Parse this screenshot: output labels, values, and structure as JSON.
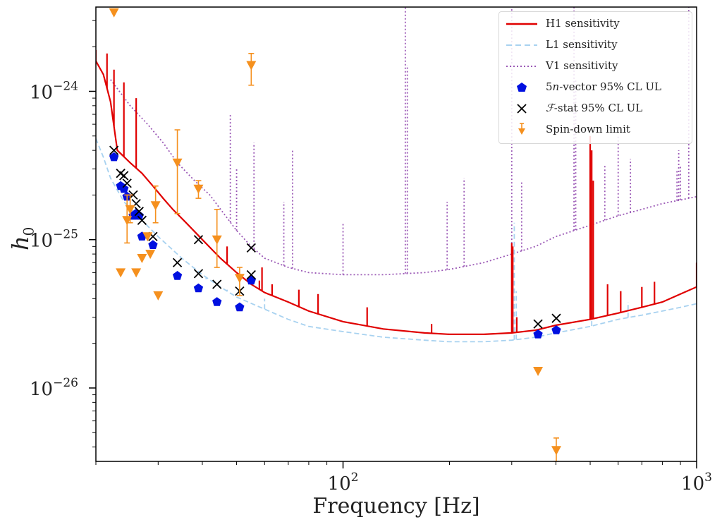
{
  "chart_data": {
    "type": "scatter",
    "title": "",
    "xlabel": "Frequency [Hz]",
    "ylabel": "h_0",
    "xscale": "log",
    "yscale": "log",
    "xlim": [
      20,
      1000
    ],
    "ylim": [
      3.2e-27,
      3.7e-24
    ],
    "x_ticks": [
      {
        "value": 100,
        "label_base": "10",
        "label_exp": "2"
      },
      {
        "value": 1000,
        "label_base": "10",
        "label_exp": "3"
      }
    ],
    "y_ticks": [
      {
        "value": 1e-26,
        "label_base": "10",
        "label_exp": "−26"
      },
      {
        "value": 1e-25,
        "label_base": "10",
        "label_exp": "−25"
      },
      {
        "value": 1e-24,
        "label_base": "10",
        "label_exp": "−24"
      }
    ],
    "grid": false,
    "legend_position": "top-right",
    "legend": [
      {
        "key": "h1",
        "label": "H1 sensitivity",
        "symbol": "solid-line",
        "color": "#e00000"
      },
      {
        "key": "l1",
        "label": "L1 sensitivity",
        "symbol": "dashed-line",
        "color": "#a8d2f0"
      },
      {
        "key": "v1",
        "label": "V1 sensitivity",
        "symbol": "dotted-line",
        "color": "#9b59b6"
      },
      {
        "key": "fivevec",
        "label": "5n-vector 95% CL UL",
        "label_html": "5<i>n</i>-vector 95% CL UL",
        "symbol": "pentagon",
        "color": "#0010e0"
      },
      {
        "key": "fstat",
        "label": "F-stat 95% CL UL",
        "label_html": "<i>ℱ</i>-stat 95% CL UL",
        "symbol": "x",
        "color": "#000000"
      },
      {
        "key": "spindown",
        "label": "Spin-down limit",
        "symbol": "triangle-down-errorbar",
        "color": "#f5901e"
      }
    ],
    "series": [
      {
        "name": "H1 sensitivity",
        "style": "solid",
        "color": "#e00000",
        "points": [
          [
            20,
            1.6e-24
          ],
          [
            21,
            1.3e-24
          ],
          [
            22,
            8.5e-25
          ],
          [
            23,
            4e-25
          ],
          [
            25,
            3.3e-25
          ],
          [
            27,
            2.8e-25
          ],
          [
            29,
            2.3e-25
          ],
          [
            31,
            1.9e-25
          ],
          [
            33,
            1.6e-25
          ],
          [
            36,
            1.3e-25
          ],
          [
            40,
            1e-25
          ],
          [
            45,
            7.5e-26
          ],
          [
            50,
            6e-26
          ],
          [
            55,
            5e-26
          ],
          [
            60,
            4.4e-26
          ],
          [
            70,
            3.8e-26
          ],
          [
            80,
            3.3e-26
          ],
          [
            100,
            2.8e-26
          ],
          [
            130,
            2.5e-26
          ],
          [
            170,
            2.35e-26
          ],
          [
            200,
            2.3e-26
          ],
          [
            250,
            2.3e-26
          ],
          [
            300,
            2.35e-26
          ],
          [
            350,
            2.45e-26
          ],
          [
            400,
            2.65e-26
          ],
          [
            500,
            2.9e-26
          ],
          [
            600,
            3.2e-26
          ],
          [
            700,
            3.5e-26
          ],
          [
            800,
            3.8e-26
          ],
          [
            900,
            4.3e-26
          ],
          [
            1000,
            4.8e-26
          ]
        ],
        "lines": [
          [
            20,
            1.9e-24
          ],
          [
            21.5,
            1.8e-24
          ],
          [
            22.5,
            1.4e-24
          ],
          [
            24,
            1.15e-24
          ],
          [
            26,
            9e-25
          ],
          [
            47,
            9e-26
          ],
          [
            52,
            5.5e-26
          ],
          [
            58,
            5.3e-26
          ],
          [
            59,
            6.5e-26
          ],
          [
            63,
            5e-26
          ],
          [
            75,
            4.6e-26
          ],
          [
            85,
            4.3e-26
          ],
          [
            117,
            3.5e-26
          ],
          [
            178,
            2.7e-26
          ],
          [
            300,
            9.5e-26
          ],
          [
            302,
            9e-26
          ],
          [
            310,
            3e-26
          ],
          [
            500,
            5e-25
          ],
          [
            505,
            4e-25
          ],
          [
            510,
            2.5e-25
          ],
          [
            560,
            5e-26
          ],
          [
            610,
            4.5e-26
          ],
          [
            700,
            4.8e-26
          ],
          [
            760,
            5.2e-26
          ],
          [
            1000,
            7e-26
          ]
        ]
      },
      {
        "name": "L1 sensitivity",
        "style": "dashed",
        "color": "#a8d2f0",
        "points": [
          [
            20,
            4.8e-25
          ],
          [
            21,
            3.6e-25
          ],
          [
            22,
            2.6e-25
          ],
          [
            24,
            1.8e-25
          ],
          [
            27,
            1.35e-25
          ],
          [
            30,
            1.05e-25
          ],
          [
            35,
            7.5e-26
          ],
          [
            40,
            5.8e-26
          ],
          [
            45,
            4.8e-26
          ],
          [
            50,
            4.1e-26
          ],
          [
            60,
            3.4e-26
          ],
          [
            70,
            2.9e-26
          ],
          [
            80,
            2.6e-26
          ],
          [
            100,
            2.4e-26
          ],
          [
            130,
            2.2e-26
          ],
          [
            170,
            2.1e-26
          ],
          [
            200,
            2.05e-26
          ],
          [
            250,
            2.05e-26
          ],
          [
            300,
            2.1e-26
          ],
          [
            350,
            2.2e-26
          ],
          [
            400,
            2.35e-26
          ],
          [
            500,
            2.6e-26
          ],
          [
            600,
            2.9e-26
          ],
          [
            700,
            3.1e-26
          ],
          [
            800,
            3.3e-26
          ],
          [
            900,
            3.5e-26
          ],
          [
            1000,
            3.7e-26
          ]
        ],
        "lines": [
          [
            41,
            5.4e-26
          ],
          [
            47,
            4.6e-26
          ],
          [
            60,
            4e-26
          ],
          [
            305,
            1.3e-25
          ],
          [
            309,
            4.5e-26
          ],
          [
            505,
            3.5e-26
          ],
          [
            640,
            3.8e-26
          ]
        ]
      },
      {
        "name": "V1 sensitivity",
        "style": "dotted",
        "color": "#9b59b6",
        "points": [
          [
            22,
            1.2e-24
          ],
          [
            25,
            8e-25
          ],
          [
            28,
            6e-25
          ],
          [
            31,
            4.5e-25
          ],
          [
            34,
            3.3e-25
          ],
          [
            38,
            2.5e-25
          ],
          [
            42,
            2e-25
          ],
          [
            46,
            1.5e-25
          ],
          [
            50,
            1.15e-25
          ],
          [
            55,
            9e-26
          ],
          [
            60,
            7.5e-26
          ],
          [
            70,
            6.5e-26
          ],
          [
            80,
            6e-26
          ],
          [
            100,
            5.8e-26
          ],
          [
            130,
            5.8e-26
          ],
          [
            170,
            6e-26
          ],
          [
            200,
            6.3e-26
          ],
          [
            250,
            7e-26
          ],
          [
            300,
            8e-26
          ],
          [
            350,
            9e-26
          ],
          [
            400,
            1.05e-25
          ],
          [
            500,
            1.25e-25
          ],
          [
            600,
            1.45e-25
          ],
          [
            700,
            1.6e-25
          ],
          [
            800,
            1.75e-25
          ],
          [
            900,
            1.85e-25
          ],
          [
            1000,
            1.95e-25
          ]
        ],
        "lines": [
          [
            48,
            7e-25
          ],
          [
            50,
            3e-25
          ],
          [
            56,
            4.5e-25
          ],
          [
            68,
            1.8e-25
          ],
          [
            72,
            4e-25
          ],
          [
            100,
            1.3e-25
          ],
          [
            150,
            3.7e-24
          ],
          [
            152,
            1.5e-24
          ],
          [
            197,
            1.8e-25
          ],
          [
            220,
            2.6e-25
          ],
          [
            300,
            3.7e-24
          ],
          [
            320,
            2.5e-25
          ],
          [
            450,
            3.7e-24
          ],
          [
            455,
            1.2e-24
          ],
          [
            500,
            3e-25
          ],
          [
            550,
            3.2e-25
          ],
          [
            600,
            5e-25
          ],
          [
            650,
            3.5e-25
          ],
          [
            880,
            3e-25
          ],
          [
            890,
            4e-25
          ],
          [
            900,
            3.2e-25
          ],
          [
            950,
            3.7e-24
          ]
        ]
      },
      {
        "name": "5n-vector 95% CL UL",
        "style": "marker",
        "marker": "pentagon",
        "color": "#0010e0",
        "points": [
          [
            22.5,
            3.6e-25
          ],
          [
            23.5,
            2.3e-25
          ],
          [
            24,
            2.2e-25
          ],
          [
            24.5,
            1.95e-25
          ],
          [
            25.5,
            1.45e-25
          ],
          [
            26,
            1.5e-25
          ],
          [
            26.5,
            1.45e-25
          ],
          [
            27,
            1.05e-25
          ],
          [
            29,
            9.2e-26
          ],
          [
            34,
            5.7e-26
          ],
          [
            39,
            4.7e-26
          ],
          [
            44,
            3.8e-26
          ],
          [
            51,
            3.5e-26
          ],
          [
            55,
            5.3e-26
          ],
          [
            356,
            2.3e-26
          ],
          [
            401,
            2.45e-26
          ]
        ]
      },
      {
        "name": "F-stat 95% CL UL",
        "style": "marker",
        "marker": "x",
        "color": "#000000",
        "points": [
          [
            22.5,
            4e-25
          ],
          [
            23.5,
            2.8e-25
          ],
          [
            24,
            2.7e-25
          ],
          [
            24.5,
            2.4e-25
          ],
          [
            25.5,
            2e-25
          ],
          [
            26,
            1.75e-25
          ],
          [
            26.5,
            1.55e-25
          ],
          [
            27,
            1.35e-25
          ],
          [
            29,
            1.05e-25
          ],
          [
            34,
            7e-26
          ],
          [
            39,
            5.9e-26
          ],
          [
            39,
            1e-25
          ],
          [
            44,
            5e-26
          ],
          [
            51,
            4.5e-26
          ],
          [
            55,
            5.8e-26
          ],
          [
            55,
            8.8e-26
          ],
          [
            356,
            2.7e-26
          ],
          [
            401,
            2.95e-26
          ]
        ]
      },
      {
        "name": "Spin-down limit",
        "style": "marker",
        "marker": "triangle-down",
        "color": "#f5901e",
        "points": [
          [
            22.5,
            3.4e-24,
            null,
            null
          ],
          [
            23.5,
            6e-26,
            null,
            null
          ],
          [
            24.5,
            1.35e-25,
            9.5e-26,
            2e-25
          ],
          [
            25,
            1.6e-25,
            1.3e-25,
            2e-25
          ],
          [
            26,
            6e-26,
            null,
            null
          ],
          [
            27,
            7.5e-26,
            null,
            null
          ],
          [
            28,
            1.05e-25,
            null,
            null
          ],
          [
            28.5,
            8e-26,
            null,
            null
          ],
          [
            29.5,
            1.7e-25,
            1.3e-25,
            2.3e-25
          ],
          [
            30,
            4.2e-26,
            null,
            null
          ],
          [
            34,
            3.3e-25,
            1.5e-25,
            5.5e-25
          ],
          [
            39,
            2.2e-25,
            1.9e-25,
            2.5e-25
          ],
          [
            44,
            1e-25,
            6.5e-26,
            1.6e-25
          ],
          [
            51,
            5.5e-26,
            4.2e-26,
            6.5e-26
          ],
          [
            55,
            1.5e-24,
            1.1e-24,
            1.8e-24
          ],
          [
            356,
            1.3e-26,
            null,
            null
          ],
          [
            401,
            3.8e-27,
            3.2e-27,
            4.6e-27
          ]
        ]
      }
    ]
  }
}
